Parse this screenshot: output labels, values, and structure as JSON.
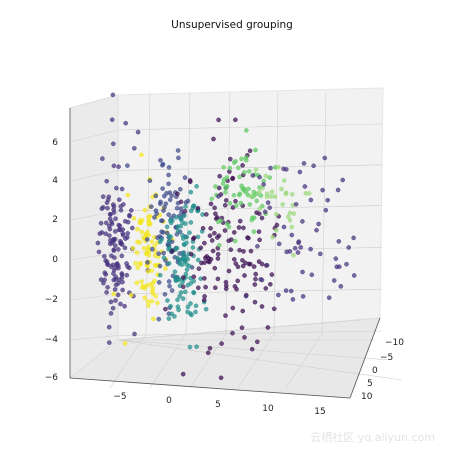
{
  "chart_data": {
    "type": "scatter",
    "title": "Unsupervised grouping",
    "xlabel": "",
    "ylabel": "",
    "zlabel": "",
    "x_ticks": [
      "−5",
      "0",
      "5",
      "10",
      "15"
    ],
    "y_ticks": [
      "−10",
      "−5",
      "0",
      "5",
      "10"
    ],
    "z_ticks": [
      "6",
      "4",
      "2",
      "0",
      "−2",
      "−4",
      "−6"
    ],
    "xlim": [
      -9,
      17
    ],
    "ylim": [
      -12,
      12
    ],
    "zlim": [
      -6,
      7
    ],
    "grid": true,
    "colors": {
      "violet_dark": "#3b0f52",
      "indigo": "#46327e",
      "slate_blue": "#3e4b8a",
      "teal": "#21908c",
      "green": "#5ec962",
      "lime": "#9ad87a",
      "yellow": "#f4e61e"
    },
    "clusters": [
      {
        "color": "indigo",
        "x": -5.5,
        "z": 1.2,
        "spread_x": 0.8,
        "spread_z": 2.2,
        "count": 130
      },
      {
        "color": "yellow",
        "x": -2.0,
        "z": 0.6,
        "spread_x": 0.6,
        "spread_z": 1.5,
        "count": 90
      },
      {
        "color": "slate_blue",
        "x": 0.0,
        "z": 1.8,
        "spread_x": 1.0,
        "spread_z": 2.0,
        "count": 90
      },
      {
        "color": "teal",
        "x": 1.5,
        "z": 0.0,
        "spread_x": 0.9,
        "spread_z": 1.8,
        "count": 110
      },
      {
        "color": "violet_dark",
        "x": 6.0,
        "z": 0.5,
        "spread_x": 2.2,
        "spread_z": 2.5,
        "count": 140
      },
      {
        "color": "green",
        "x": 7.5,
        "z": 3.5,
        "spread_x": 1.5,
        "spread_z": 1.0,
        "count": 60
      },
      {
        "color": "lime",
        "x": 11.0,
        "z": 3.2,
        "spread_x": 1.2,
        "spread_z": 1.0,
        "count": 30
      },
      {
        "color": "indigo",
        "x": 13.0,
        "z": 1.5,
        "spread_x": 2.5,
        "spread_z": 2.0,
        "count": 60
      }
    ],
    "watermark": "云栖社区 yq.aliyun.com"
  }
}
